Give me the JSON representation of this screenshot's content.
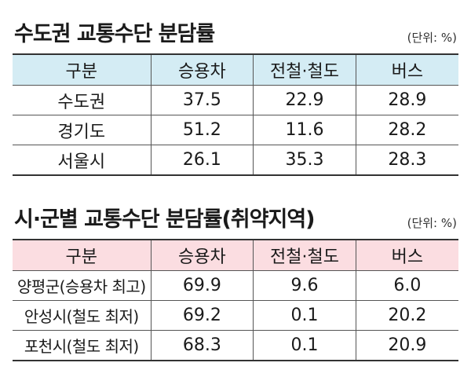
{
  "table1": {
    "title": "수도권 교통수단 분담률",
    "unit": "(단위: %)",
    "headers": [
      "구분",
      "승용차",
      "전철·철도",
      "버스"
    ],
    "rows": [
      [
        "수도권",
        "37.5",
        "22.9",
        "28.9"
      ],
      [
        "경기도",
        "51.2",
        "11.6",
        "28.2"
      ],
      [
        "서울시",
        "26.1",
        "35.3",
        "28.3"
      ]
    ]
  },
  "table2": {
    "title": "시·군별 교통수단 분담률(취약지역)",
    "unit": "(단위: %)",
    "headers": [
      "구분",
      "승용차",
      "전철·철도",
      "버스"
    ],
    "rows": [
      [
        "양평군(승용차 최고)",
        "69.9",
        "9.6",
        "6.0"
      ],
      [
        "안성시(철도 최저)",
        "69.2",
        "0.1",
        "20.2"
      ],
      [
        "포천시(철도 최저)",
        "68.3",
        "0.1",
        "20.9"
      ]
    ]
  },
  "colors": {
    "table1_header_bg": "#d4ecf4",
    "table2_header_bg": "#fbdde1"
  }
}
